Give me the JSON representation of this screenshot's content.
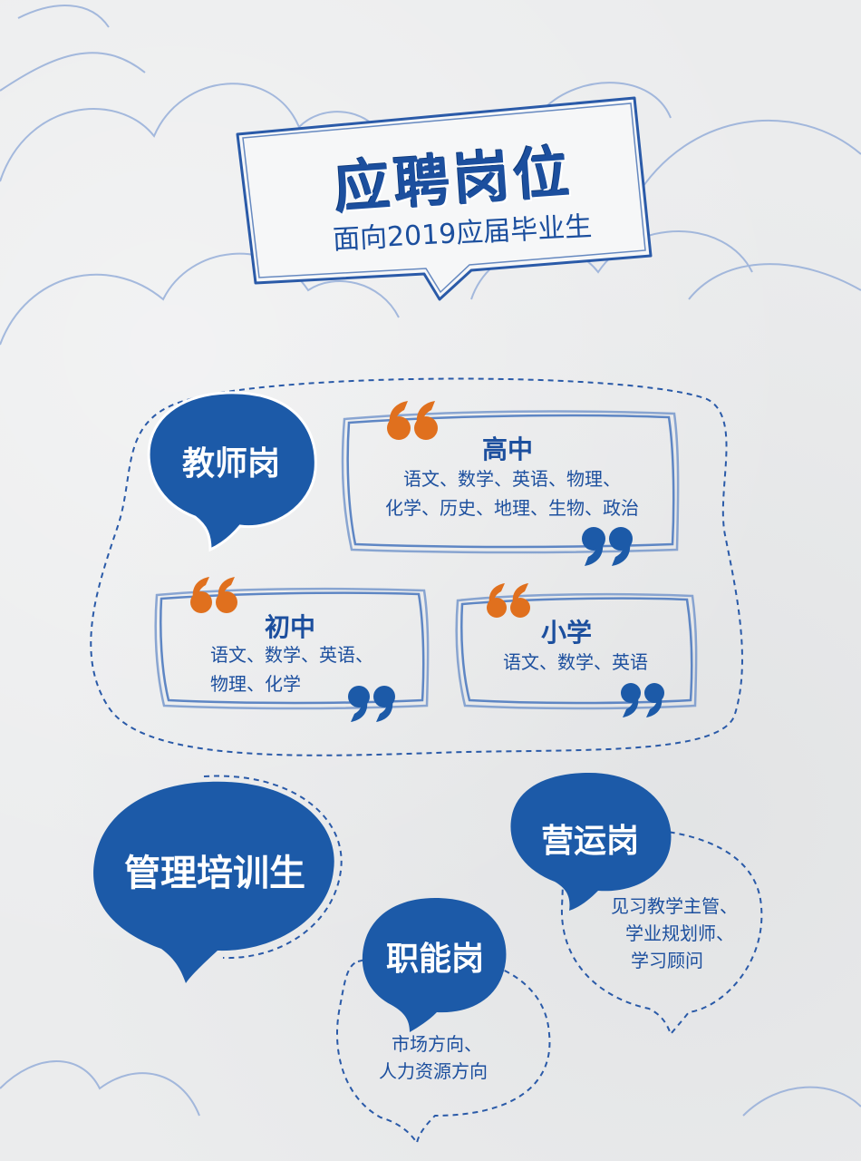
{
  "header": {
    "title": "应聘岗位",
    "subtitle": "面向2019应届毕业生"
  },
  "teacher": {
    "label": "教师岗",
    "high_school": {
      "title": "高中",
      "lines": [
        "语文、数学、英语、物理、",
        "化学、历史、地理、生物、政治"
      ]
    },
    "middle_school": {
      "title": "初中",
      "lines": [
        "语文、数学、英语、",
        "物理、化学"
      ]
    },
    "primary_school": {
      "title": "小学",
      "lines": [
        "语文、数学、英语"
      ]
    }
  },
  "management": {
    "label": "管理培训生"
  },
  "operations": {
    "label": "营运岗",
    "lines": [
      "见习教学主管、",
      "学业规划师、",
      "学习顾问"
    ]
  },
  "functional": {
    "label": "职能岗",
    "lines": [
      "市场方向、",
      "人力资源方向"
    ]
  },
  "colors": {
    "primary_blue": "#1c5aa8",
    "quote_orange": "#e0701e",
    "sketch_blue": "#5e86c4"
  },
  "icons": [
    "open-quote-icon",
    "close-quote-icon",
    "cloud-doodle",
    "speech-bubble"
  ]
}
